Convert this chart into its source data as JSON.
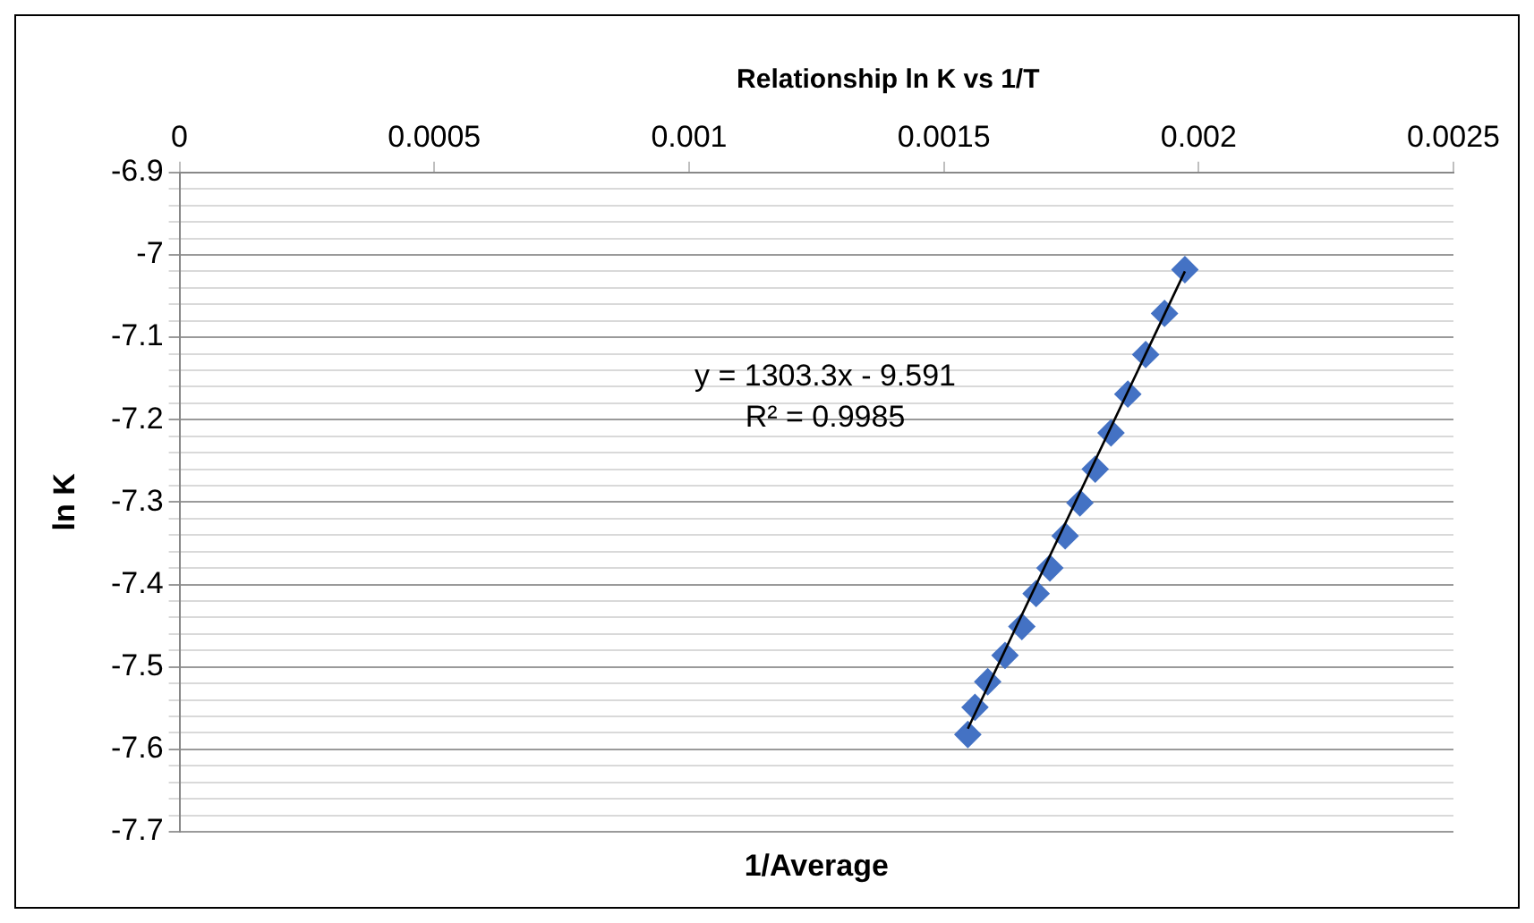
{
  "chart_data": {
    "type": "scatter",
    "title": "Relationship ln K vs 1/T",
    "xlabel": "1/Average",
    "ylabel": "ln K",
    "annotations": [
      "y = 1303.3x - 9.591",
      "R² = 0.9985"
    ],
    "xlim": [
      0,
      0.0025
    ],
    "xticks": [
      0,
      0.0005,
      0.001,
      0.0015,
      0.002,
      0.0025
    ],
    "ylim": [
      -7.7,
      -6.9
    ],
    "yticks": [
      -7.7,
      {
        "value": -7.68,
        "label": null
      },
      {
        "value": -7.66,
        "label": null
      },
      {
        "value": -7.64,
        "label": null
      },
      {
        "value": -7.62,
        "label": null
      },
      -7.6,
      {
        "value": -7.58,
        "label": null
      },
      {
        "value": -7.56,
        "label": null
      },
      {
        "value": -7.54,
        "label": null
      },
      {
        "value": -7.52,
        "label": null
      },
      -7.5,
      {
        "value": -7.48,
        "label": null
      },
      {
        "value": -7.46,
        "label": null
      },
      {
        "value": -7.44,
        "label": null
      },
      {
        "value": -7.42,
        "label": null
      },
      -7.4,
      {
        "value": -7.38,
        "label": null
      },
      {
        "value": -7.36,
        "label": null
      },
      {
        "value": -7.34,
        "label": null
      },
      {
        "value": -7.32,
        "label": null
      },
      -7.3,
      {
        "value": -7.28,
        "label": null
      },
      {
        "value": -7.26,
        "label": null
      },
      {
        "value": -7.24,
        "label": null
      },
      {
        "value": -7.22,
        "label": null
      },
      -7.2,
      {
        "value": -7.18,
        "label": null
      },
      {
        "value": -7.16,
        "label": null
      },
      {
        "value": -7.14,
        "label": null
      },
      {
        "value": -7.12,
        "label": null
      },
      -7.1,
      {
        "value": -7.08,
        "label": null
      },
      {
        "value": -7.06,
        "label": null
      },
      {
        "value": -7.04,
        "label": null
      },
      {
        "value": -7.02,
        "label": null
      },
      -7,
      {
        "value": -6.98,
        "label": null
      },
      {
        "value": -6.96,
        "label": null
      },
      {
        "value": -6.94,
        "label": null
      },
      {
        "value": -6.92,
        "label": null
      },
      -6.9
    ],
    "grid": "y",
    "legend": false,
    "marker": "diamond",
    "series": [
      {
        "color": "#4472c4",
        "x": [
          0.001973,
          0.001933,
          0.001896,
          0.001861,
          0.001828,
          0.001797,
          0.001767,
          0.001738,
          0.001708,
          0.001681,
          0.001653,
          0.00162,
          0.001586,
          0.001561,
          0.001547
        ],
        "values": [
          -7.018,
          -7.071,
          -7.121,
          -7.169,
          -7.216,
          -7.26,
          -7.301,
          -7.341,
          -7.38,
          -7.411,
          -7.451,
          -7.486,
          -7.518,
          -7.549,
          -7.582
        ]
      },
      {
        "type": "line",
        "color": "#000000",
        "marker": "none",
        "x": [
          0.001547,
          0.001973
        ],
        "values": [
          -7.575,
          -7.02
        ]
      }
    ]
  }
}
